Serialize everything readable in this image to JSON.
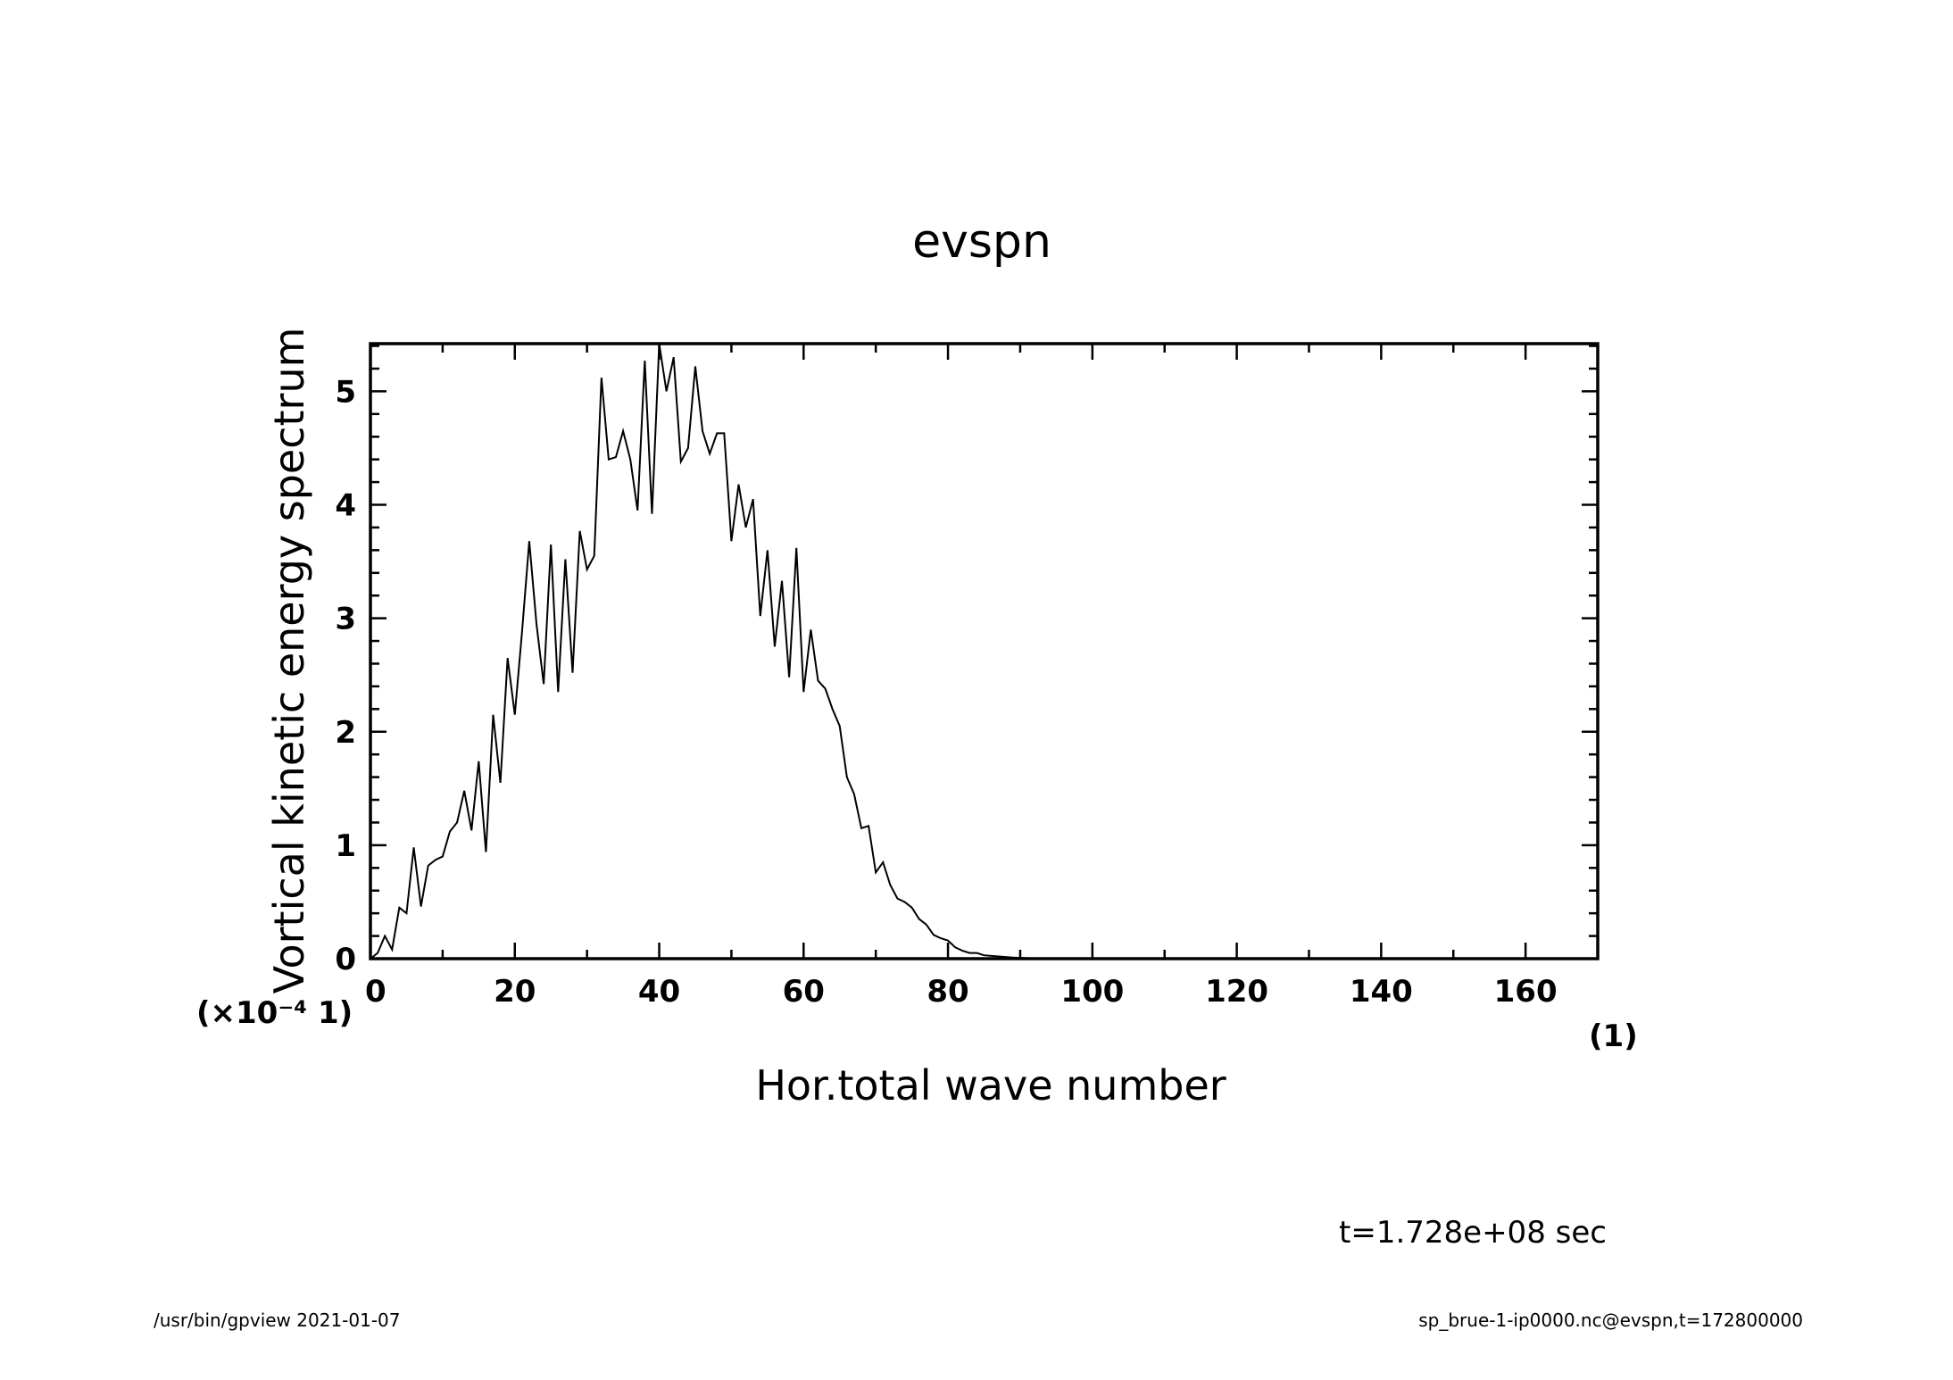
{
  "chart_data": {
    "type": "line",
    "title": "evspn",
    "xlabel": "Hor.total wave number",
    "ylabel": "Vortical kinetic energy spectrum",
    "xlim": [
      0,
      170
    ],
    "ylim": [
      0,
      5.42
    ],
    "xticks": [
      0,
      20,
      40,
      60,
      80,
      100,
      120,
      140,
      160
    ],
    "yticks": [
      0,
      1,
      2,
      3,
      4,
      5
    ],
    "x_unit_label": "(1)",
    "y_unit_label": "(×10⁻⁴ 1)",
    "grid": false,
    "line_color": "#000000",
    "series": [
      {
        "x": [
          0,
          1,
          2,
          3,
          4,
          5,
          6,
          7,
          8,
          9,
          10,
          11,
          12,
          13,
          14,
          15,
          16,
          17,
          18,
          19,
          20,
          21,
          22,
          23,
          24,
          25,
          26,
          27,
          28,
          29,
          30,
          31,
          32,
          33,
          34,
          35,
          36,
          37,
          38,
          39,
          40,
          41,
          42,
          43,
          44,
          45,
          46,
          47,
          48,
          49,
          50,
          51,
          52,
          53,
          54,
          55,
          56,
          57,
          58,
          59,
          60,
          61,
          62,
          63,
          64,
          65,
          66,
          67,
          68,
          69,
          70,
          71,
          72,
          73,
          74,
          75,
          76,
          77,
          78,
          79,
          80,
          81,
          82,
          83,
          84,
          85,
          86,
          87,
          88,
          89,
          90,
          91,
          92,
          93,
          94,
          95,
          96,
          97,
          98,
          99,
          100,
          105,
          110,
          120,
          130,
          140,
          150,
          160,
          170
        ],
        "y": [
          0.0,
          0.05,
          0.2,
          0.08,
          0.45,
          0.4,
          0.98,
          0.46,
          0.82,
          0.87,
          0.9,
          1.12,
          1.2,
          1.48,
          1.13,
          1.74,
          0.94,
          2.15,
          1.55,
          2.65,
          2.15,
          2.88,
          3.68,
          2.95,
          2.42,
          3.65,
          2.35,
          3.52,
          2.52,
          3.77,
          3.43,
          3.55,
          5.12,
          4.4,
          4.42,
          4.65,
          4.4,
          3.95,
          5.27,
          3.92,
          5.42,
          5.0,
          5.3,
          4.38,
          4.5,
          5.22,
          4.65,
          4.45,
          4.63,
          4.63,
          3.68,
          4.18,
          3.8,
          4.05,
          3.02,
          3.6,
          2.75,
          3.33,
          2.48,
          3.62,
          2.35,
          2.9,
          2.45,
          2.38,
          2.2,
          2.05,
          1.6,
          1.45,
          1.15,
          1.17,
          0.76,
          0.85,
          0.65,
          0.53,
          0.5,
          0.45,
          0.35,
          0.3,
          0.21,
          0.18,
          0.16,
          0.1,
          0.07,
          0.05,
          0.05,
          0.03,
          0.025,
          0.02,
          0.015,
          0.01,
          0.007,
          0.005,
          0.003,
          0.002,
          0.001,
          0.0,
          0.0,
          0.0,
          0.0,
          0.0,
          0.0,
          0.0,
          0.0,
          0.0,
          0.0,
          0.0,
          0.0,
          0.0,
          0.0
        ]
      }
    ]
  },
  "annotations": {
    "time_label": "t=1.728e+08 sec",
    "footer_left": "/usr/bin/gpview   2021-01-07",
    "footer_right": "sp_brue-1-ip0000.nc@evspn,t=172800000"
  }
}
